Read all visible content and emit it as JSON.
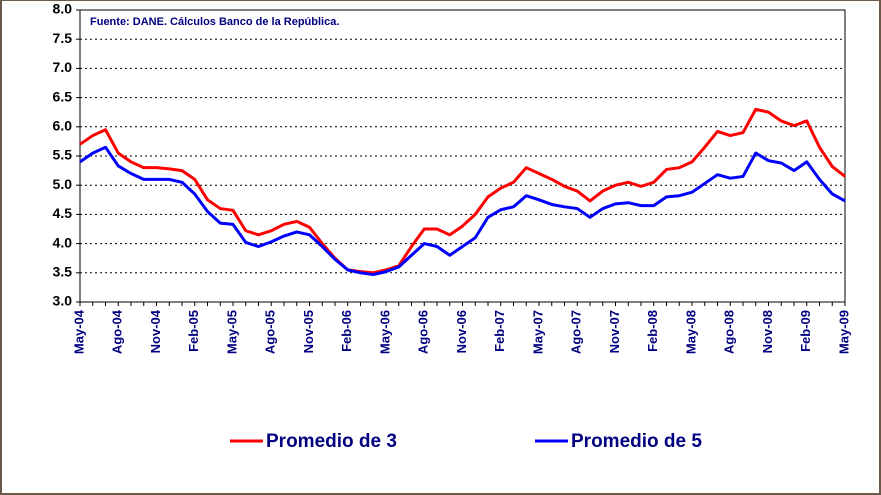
{
  "chart_data": {
    "type": "line",
    "annotation": "Fuente: DANE. Cálculos Banco de la República.",
    "categories": [
      "May-04",
      null,
      null,
      "Ago-04",
      null,
      null,
      "Nov-04",
      null,
      null,
      "Feb-05",
      null,
      null,
      "May-05",
      null,
      null,
      "Ago-05",
      null,
      null,
      "Nov-05",
      null,
      null,
      "Feb-06",
      null,
      null,
      "May-06",
      null,
      null,
      "Ago-06",
      null,
      null,
      "Nov-06",
      null,
      null,
      "Feb-07",
      null,
      null,
      "May-07",
      null,
      null,
      "Ago-07",
      null,
      null,
      "Nov-07",
      null,
      null,
      "Feb-08",
      null,
      null,
      "May-08",
      null,
      null,
      "Ago-08",
      null,
      null,
      "Nov-08",
      null,
      null,
      "Feb-09",
      null,
      null,
      "May-09"
    ],
    "series": [
      {
        "name": "Promedio de 3",
        "color": "#ff0000",
        "values": [
          5.7,
          5.85,
          5.95,
          5.55,
          5.4,
          5.3,
          5.3,
          5.28,
          5.25,
          5.1,
          4.75,
          4.6,
          4.57,
          4.22,
          4.15,
          4.22,
          4.33,
          4.38,
          4.28,
          4.0,
          3.75,
          3.55,
          3.52,
          3.5,
          3.55,
          3.62,
          3.95,
          4.25,
          4.25,
          4.15,
          4.3,
          4.5,
          4.8,
          4.95,
          5.05,
          5.3,
          5.2,
          5.1,
          4.98,
          4.9,
          4.73,
          4.9,
          5.0,
          5.05,
          4.98,
          5.05,
          5.27,
          5.3,
          5.4,
          5.65,
          5.92,
          5.85,
          5.9,
          6.3,
          6.25,
          6.1,
          6.02,
          6.1,
          5.65,
          5.32,
          5.15
        ]
      },
      {
        "name": "Promedio de 5",
        "color": "#0000ff",
        "values": [
          5.4,
          5.55,
          5.65,
          5.33,
          5.2,
          5.1,
          5.1,
          5.1,
          5.05,
          4.85,
          4.55,
          4.35,
          4.33,
          4.02,
          3.95,
          4.03,
          4.13,
          4.2,
          4.15,
          3.95,
          3.73,
          3.55,
          3.5,
          3.47,
          3.52,
          3.6,
          3.8,
          4.0,
          3.95,
          3.8,
          3.95,
          4.1,
          4.45,
          4.58,
          4.63,
          4.82,
          4.75,
          4.67,
          4.63,
          4.6,
          4.45,
          4.6,
          4.68,
          4.7,
          4.65,
          4.65,
          4.8,
          4.82,
          4.88,
          5.03,
          5.18,
          5.12,
          5.15,
          5.55,
          5.42,
          5.38,
          5.25,
          5.4,
          5.1,
          4.85,
          4.73
        ]
      }
    ],
    "ylim": [
      3,
      8
    ],
    "yticks": [
      {
        "value": 3,
        "label": "3.0"
      },
      3.5,
      {
        "value": 4,
        "label": "4.0"
      },
      4.5,
      {
        "value": 5,
        "label": "5.0"
      },
      5.5,
      {
        "value": 6,
        "label": "6.0"
      },
      6.5,
      {
        "value": 7,
        "label": "7.0"
      },
      7.5,
      {
        "value": 8,
        "label": "8.0"
      }
    ],
    "grid": true
  }
}
